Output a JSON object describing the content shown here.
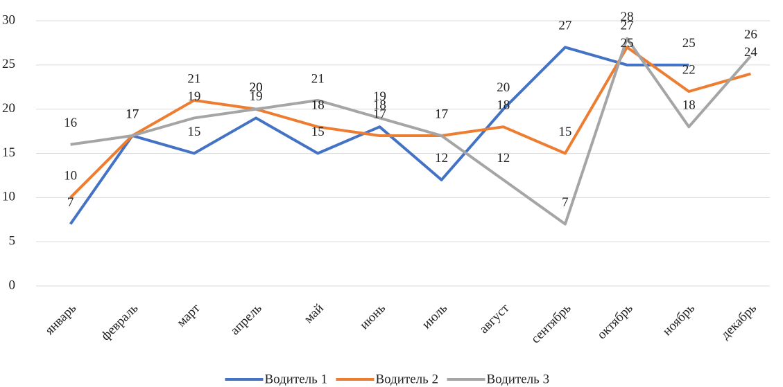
{
  "chart_data": {
    "type": "line",
    "categories": [
      "январь",
      "февраль",
      "март",
      "апрель",
      "май",
      "июнь",
      "июль",
      "август",
      "сентябрь",
      "октябрь",
      "ноябрь",
      "декабрь"
    ],
    "series": [
      {
        "name": "Водитель 1",
        "color": "#4472c4",
        "values": [
          7,
          17,
          15,
          19,
          15,
          18,
          12,
          20,
          27,
          25,
          25,
          null
        ]
      },
      {
        "name": "Водитель 2",
        "color": "#ed7d31",
        "values": [
          10,
          17,
          21,
          20,
          18,
          17,
          17,
          18,
          15,
          27,
          22,
          24
        ]
      },
      {
        "name": "Водитель 3",
        "color": "#a5a5a5",
        "values": [
          16,
          17,
          19,
          20,
          21,
          19,
          17,
          12,
          7,
          28,
          18,
          26
        ]
      }
    ],
    "ylim": [
      0,
      30
    ],
    "yticks": [
      0,
      5,
      10,
      15,
      20,
      25,
      30
    ],
    "grid": true,
    "legend": "bottom"
  }
}
